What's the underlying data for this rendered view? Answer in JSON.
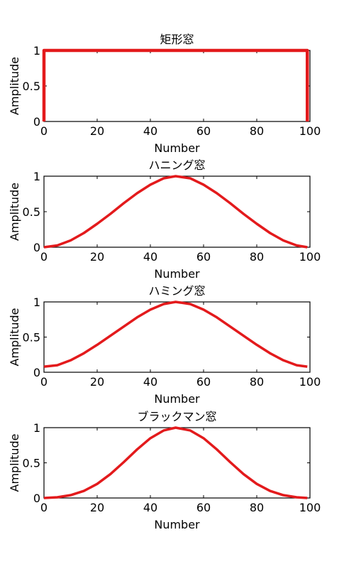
{
  "chart_data": [
    {
      "type": "line",
      "title": "矩形窓",
      "xlabel": "Number",
      "ylabel": "Amplitude",
      "xlim": [
        0,
        100
      ],
      "ylim": [
        0,
        1
      ],
      "xticks": [
        "0",
        "20",
        "40",
        "60",
        "80",
        "100"
      ],
      "yticks": [
        "0",
        "0.5",
        "1"
      ],
      "grid": false,
      "line_color": "#e31a1c",
      "series": [
        {
          "x": [
            0,
            0,
            99,
            99
          ],
          "y": [
            0,
            1,
            1,
            0
          ]
        }
      ]
    },
    {
      "type": "line",
      "title": "ハニング窓",
      "xlabel": "Number",
      "ylabel": "Amplitude",
      "xlim": [
        0,
        100
      ],
      "ylim": [
        0,
        1
      ],
      "xticks": [
        "0",
        "20",
        "40",
        "60",
        "80",
        "100"
      ],
      "yticks": [
        "0",
        "0.5",
        "1"
      ],
      "grid": false,
      "line_color": "#e31a1c",
      "series": [
        {
          "x": [
            0,
            5,
            10,
            15,
            20,
            25,
            30,
            35,
            40,
            45,
            49.5,
            55,
            60,
            65,
            70,
            75,
            80,
            85,
            90,
            95,
            99
          ],
          "y": [
            0,
            0.025,
            0.095,
            0.2,
            0.33,
            0.47,
            0.62,
            0.76,
            0.88,
            0.97,
            1,
            0.97,
            0.88,
            0.76,
            0.62,
            0.47,
            0.33,
            0.2,
            0.095,
            0.025,
            0
          ]
        }
      ]
    },
    {
      "type": "line",
      "title": "ハミング窓",
      "xlabel": "Number",
      "ylabel": "Amplitude",
      "xlim": [
        0,
        100
      ],
      "ylim": [
        0,
        1
      ],
      "xticks": [
        "0",
        "20",
        "40",
        "60",
        "80",
        "100"
      ],
      "yticks": [
        "0",
        "0.5",
        "1"
      ],
      "grid": false,
      "line_color": "#e31a1c",
      "series": [
        {
          "x": [
            0,
            5,
            10,
            15,
            20,
            25,
            30,
            35,
            40,
            45,
            49.5,
            55,
            60,
            65,
            70,
            75,
            80,
            85,
            90,
            95,
            99
          ],
          "y": [
            0.08,
            0.1,
            0.17,
            0.27,
            0.39,
            0.52,
            0.65,
            0.78,
            0.89,
            0.97,
            1,
            0.97,
            0.89,
            0.78,
            0.65,
            0.52,
            0.39,
            0.27,
            0.17,
            0.1,
            0.08
          ]
        }
      ]
    },
    {
      "type": "line",
      "title": "ブラックマン窓",
      "xlabel": "Number",
      "ylabel": "Amplitude",
      "xlim": [
        0,
        100
      ],
      "ylim": [
        0,
        1
      ],
      "xticks": [
        "0",
        "20",
        "40",
        "60",
        "80",
        "100"
      ],
      "yticks": [
        "0",
        "0.5",
        "1"
      ],
      "grid": false,
      "line_color": "#e31a1c",
      "series": [
        {
          "x": [
            0,
            5,
            10,
            15,
            20,
            25,
            30,
            35,
            40,
            45,
            49.5,
            55,
            60,
            65,
            70,
            75,
            80,
            85,
            90,
            95,
            99
          ],
          "y": [
            0,
            0.01,
            0.04,
            0.1,
            0.2,
            0.34,
            0.51,
            0.69,
            0.85,
            0.96,
            1,
            0.96,
            0.85,
            0.69,
            0.51,
            0.34,
            0.2,
            0.1,
            0.04,
            0.01,
            0
          ]
        }
      ]
    }
  ]
}
